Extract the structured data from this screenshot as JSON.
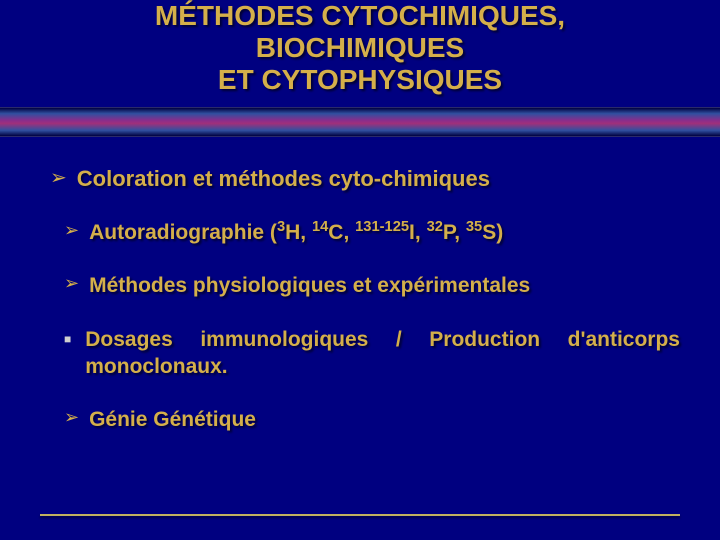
{
  "title": {
    "line1": "MÉTHODES CYTOCHIMIQUES,",
    "line2": "BIOCHIMIQUES",
    "line3": "ET CYTOPHYSIQUES"
  },
  "colors": {
    "background": "#000080",
    "text": "#d4af4a",
    "bullet_arrow": "#d4af4a",
    "bullet_square": "#cfcfcf"
  },
  "items": [
    {
      "kind": "arrow",
      "indent": 0,
      "text": "Coloration et méthodes cyto-chimiques"
    },
    {
      "kind": "arrow",
      "indent": 1,
      "html": "Autoradiographie (<sup>3</sup>H, <sup>14</sup>C, <sup>131-125</sup>I, <sup>32</sup>P, <sup>35</sup>S)"
    },
    {
      "kind": "arrow",
      "indent": 1,
      "text": "Méthodes physiologiques et expérimentales"
    },
    {
      "kind": "square",
      "indent": 1,
      "justify": true,
      "text": " Dosages immunologiques / Production d'anticorps monoclonaux."
    },
    {
      "kind": "arrow",
      "indent": 1,
      "text": "Génie Génétique"
    }
  ]
}
